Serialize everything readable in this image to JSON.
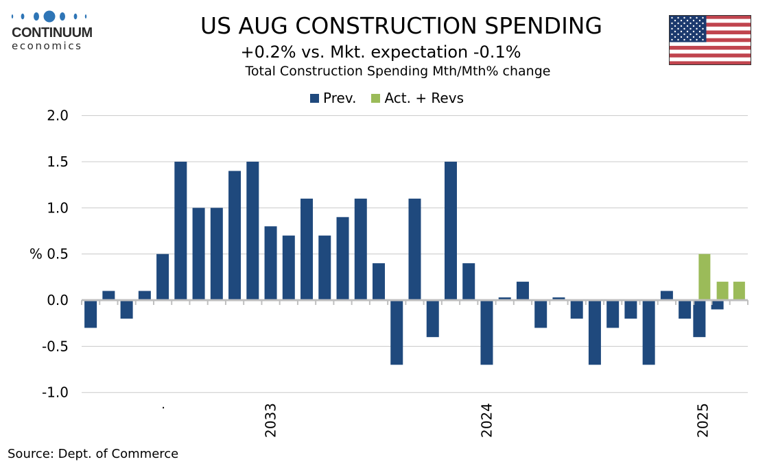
{
  "logo": {
    "name": "CONTINUUM",
    "sub": "economics",
    "color": "#2e75b6"
  },
  "header": {
    "title": "US AUG CONSTRUCTION SPENDING",
    "subtitle": "+0.2% vs. Mkt. expectation -0.1%",
    "subtitle2": "Total Construction Spending Mth/Mth% change",
    "flag_icon": "us-flag-icon"
  },
  "legend": [
    {
      "label": "Prev.",
      "color": "#1f497d"
    },
    {
      "label": "Act. + Revs",
      "color": "#9bbb59"
    }
  ],
  "footer": {
    "source": "Source: Dept. of Commerce"
  },
  "chart_data": {
    "type": "bar",
    "title": "US AUG CONSTRUCTION SPENDING",
    "subtitle": "+0.2% vs. Mkt. expectation -0.1%",
    "ylabel": "%",
    "xlabel": "",
    "ylim": [
      -1.0,
      2.0
    ],
    "yticks": [
      2.0,
      1.5,
      1.0,
      0.5,
      0.0,
      -0.5,
      -1.0
    ],
    "ytick_labels": [
      "2.0",
      "1.5",
      "1.0",
      "% 0.5",
      "0.0",
      "-0.5",
      "-1.0"
    ],
    "grid": true,
    "legend_position": "top",
    "x_labels": [
      {
        "index": 4.5,
        "label": "."
      },
      {
        "index": 10.5,
        "label": "2033"
      },
      {
        "index": 22.5,
        "label": "2024"
      },
      {
        "index": 34.5,
        "label": "2025"
      }
    ],
    "series": [
      {
        "name": "Prev.",
        "color": "#1f497d",
        "values": [
          -0.3,
          0.1,
          -0.2,
          0.1,
          0.5,
          1.5,
          1.0,
          1.0,
          1.4,
          1.5,
          0.8,
          0.7,
          1.1,
          0.7,
          0.9,
          1.1,
          0.4,
          -0.7,
          1.1,
          -0.4,
          1.5,
          0.4,
          -0.7,
          0.03,
          0.2,
          -0.3,
          0.03,
          -0.2,
          -0.7,
          -0.3,
          -0.2,
          -0.7,
          0.1,
          -0.2,
          -0.4,
          -0.1,
          null
        ]
      },
      {
        "name": "Act. + Revs",
        "color": "#9bbb59",
        "values": [
          null,
          null,
          null,
          null,
          null,
          null,
          null,
          null,
          null,
          null,
          null,
          null,
          null,
          null,
          null,
          null,
          null,
          null,
          null,
          null,
          null,
          null,
          null,
          null,
          null,
          null,
          null,
          null,
          null,
          null,
          null,
          null,
          null,
          null,
          0.5,
          0.2,
          0.2
        ]
      }
    ]
  }
}
